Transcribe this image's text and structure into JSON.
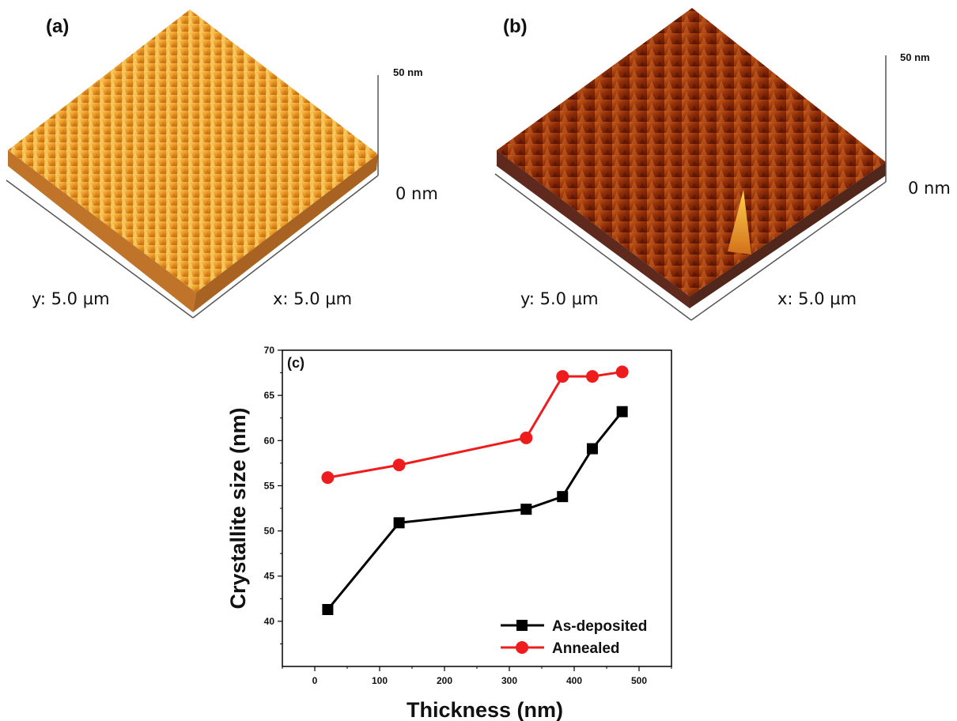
{
  "panel_a": {
    "label": "(a)",
    "scale_max": "50 nm",
    "scale_min": "0 nm",
    "y_extent": "y: 5.0 µm",
    "x_extent": "x: 5.0 µm",
    "colormap": [
      "#f7c14b",
      "#e98a1a",
      "#b35a0a"
    ]
  },
  "panel_b": {
    "label": "(b)",
    "scale_max": "50 nm",
    "scale_min": "0 nm",
    "y_extent": "y: 5.0 µm",
    "x_extent": "x: 5.0 µm",
    "colormap": [
      "#c45a18",
      "#8e2a08",
      "#5a1503"
    ]
  },
  "chart_data": {
    "type": "line",
    "panel_label": "(c)",
    "xlabel": "Thickness (nm)",
    "ylabel": "Crystallite size (nm)",
    "xlim": [
      -50,
      550
    ],
    "ylim": [
      35,
      70
    ],
    "xticks": [
      0,
      100,
      200,
      300,
      400,
      500
    ],
    "yticks": [
      40,
      45,
      50,
      55,
      60,
      65,
      70
    ],
    "grid": false,
    "legend_position": "bottom-right",
    "series": [
      {
        "name": "As-deposited",
        "marker": "square",
        "color": "#000000",
        "x": [
          20,
          130,
          326,
          382,
          428,
          474
        ],
        "y": [
          41.3,
          50.9,
          52.4,
          53.8,
          59.1,
          63.2
        ]
      },
      {
        "name": "Annealed",
        "marker": "circle",
        "color": "#ee1c1c",
        "x": [
          20,
          130,
          326,
          382,
          428,
          474
        ],
        "y": [
          55.9,
          57.3,
          60.3,
          67.1,
          67.1,
          67.6
        ]
      }
    ]
  }
}
